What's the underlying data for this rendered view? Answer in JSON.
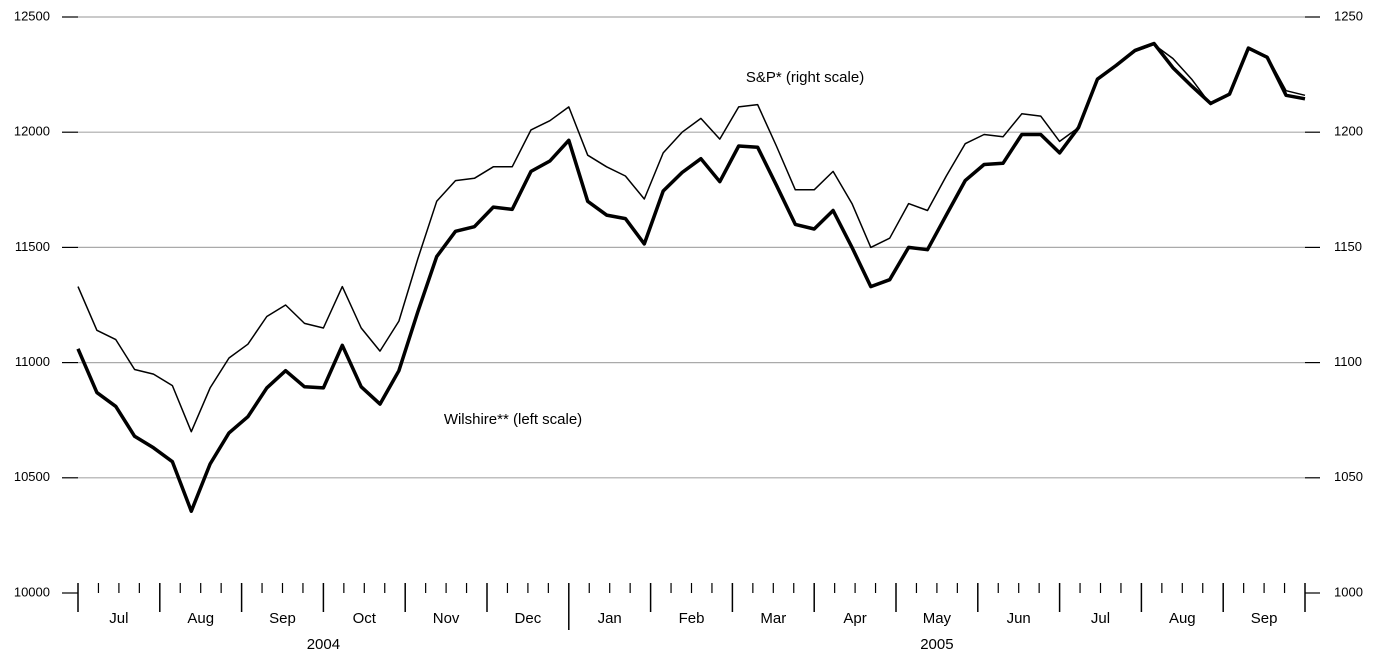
{
  "chart_data": {
    "type": "line",
    "annotations": [
      "S&P* (right scale)",
      "Wilshire** (left scale)"
    ],
    "x_labels": [
      "Jul",
      "Aug",
      "Sep",
      "Oct",
      "Nov",
      "Dec",
      "Jan",
      "Feb",
      "Mar",
      "Apr",
      "May",
      "Jun",
      "Jul",
      "Aug",
      "Sep"
    ],
    "years": [
      "2004",
      "2005"
    ],
    "ylim": [
      10000,
      12500
    ],
    "yticks": [
      10000,
      10500,
      11000,
      11500,
      12000,
      12500
    ],
    "y2lim": [
      1000,
      1250
    ],
    "y2ticks": [
      1000,
      1050,
      1100,
      1150,
      1200,
      1250
    ],
    "grid": true,
    "series": [
      {
        "color": "#000000",
        "width": 3.5,
        "values": [
          11060,
          10870,
          10810,
          10680,
          10630,
          10570,
          10355,
          10560,
          10695,
          10765,
          10890,
          10965,
          10895,
          10890,
          11075,
          10895,
          10820,
          10965,
          11220,
          11460,
          11570,
          11590,
          11675,
          11665,
          11830,
          11875,
          11965,
          11700,
          11640,
          11625,
          11515,
          11745,
          11825,
          11885,
          11785,
          11940,
          11935,
          11770,
          11600,
          11580,
          11660,
          11500,
          11330,
          11360,
          11500,
          11490,
          11640,
          11790,
          11860,
          11865,
          11990,
          11990,
          11910,
          12020,
          12230,
          12290,
          12355,
          12385,
          12280,
          12200,
          12125,
          12165,
          12365,
          12325,
          12160,
          12145
        ]
      },
      {
        "color": "#000000",
        "width": 1.5,
        "axis": "y2",
        "values": [
          1133,
          1114,
          1110,
          1097,
          1095,
          1090,
          1070,
          1089,
          1102,
          1108,
          1120,
          1125,
          1117,
          1115,
          1133,
          1115,
          1105,
          1118,
          1145,
          1170,
          1179,
          1180,
          1185,
          1185,
          1201,
          1205,
          1211,
          1190,
          1185,
          1181,
          1171,
          1191,
          1200,
          1206,
          1197,
          1211,
          1212,
          1194,
          1175,
          1175,
          1183,
          1169,
          1150,
          1154,
          1169,
          1166,
          1181,
          1195,
          1199,
          1198,
          1208,
          1207,
          1196,
          1202,
          1223,
          1229,
          1235,
          1238,
          1232,
          1223,
          1212,
          1217,
          1236,
          1233,
          1218,
          1216
        ]
      }
    ]
  }
}
